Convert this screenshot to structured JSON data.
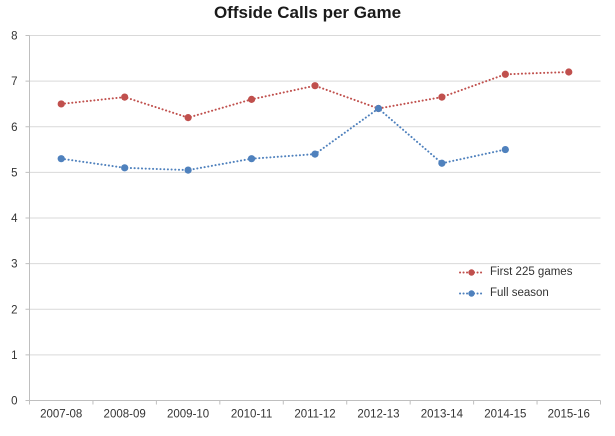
{
  "chart_data": {
    "type": "line",
    "title": "Offside Calls per Game",
    "xlabel": "",
    "ylabel": "",
    "categories": [
      "2007-08",
      "2008-09",
      "2009-10",
      "2010-11",
      "2011-12",
      "2012-13",
      "2013-14",
      "2014-15",
      "2015-16"
    ],
    "series": [
      {
        "name": "First 225 games",
        "color": "#C0504D",
        "line_style": "dotted",
        "marker": "circle",
        "values": [
          6.5,
          6.65,
          6.2,
          6.6,
          6.9,
          6.4,
          6.65,
          7.15,
          7.2
        ]
      },
      {
        "name": "Full season",
        "color": "#4F81BD",
        "line_style": "dotted",
        "marker": "circle",
        "values": [
          5.3,
          5.1,
          5.05,
          5.3,
          5.4,
          6.4,
          5.2,
          5.5,
          null
        ]
      }
    ],
    "ylim": [
      0,
      8
    ],
    "yticks": [
      0,
      1,
      2,
      3,
      4,
      5,
      6,
      7,
      8
    ],
    "grid": "horizontal",
    "legend_position": "right-middle"
  },
  "colors": {
    "gridline": "#D9D9D9",
    "axis": "#BFBFBF",
    "tick_text": "#333333",
    "title_text": "#1A1A1A",
    "background": "#FFFFFF"
  }
}
